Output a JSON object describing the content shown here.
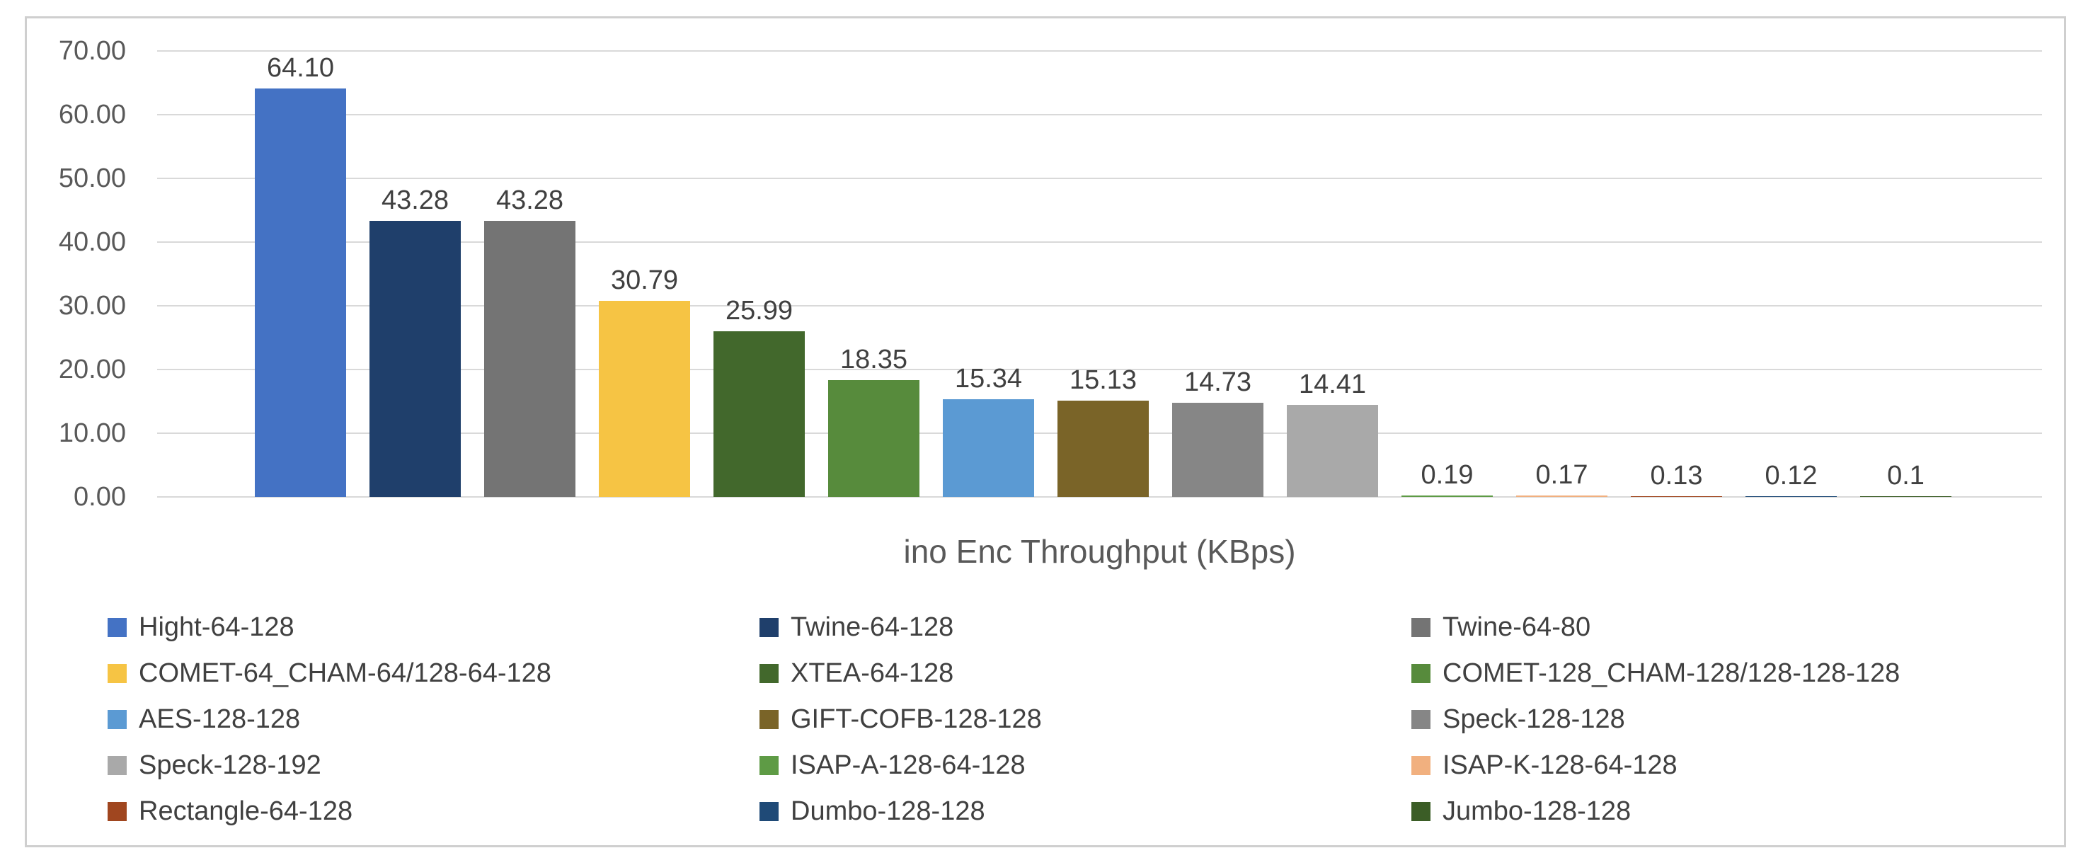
{
  "chart_data": {
    "type": "bar",
    "title": "",
    "xlabel": "ino Enc Throughput (KBps)",
    "ylabel": "",
    "ylim": [
      0,
      70
    ],
    "ytick_step": 10,
    "yticks": [
      "70.00",
      "60.00",
      "50.00",
      "40.00",
      "30.00",
      "20.00",
      "10.00",
      "0.00"
    ],
    "grid": true,
    "legend_position": "bottom",
    "legend_columns": 3,
    "series": [
      {
        "name": "Hight-64-128",
        "value": 64.1,
        "label": "64.10",
        "color": "#4472C4"
      },
      {
        "name": "Twine-64-128",
        "value": 43.28,
        "label": "43.28",
        "color": "#1F3F6B"
      },
      {
        "name": "Twine-64-80",
        "value": 43.28,
        "label": "43.28",
        "color": "#747474"
      },
      {
        "name": "COMET-64_CHAM-64/128-64-128",
        "value": 30.79,
        "label": "30.79",
        "color": "#F6C444"
      },
      {
        "name": "XTEA-64-128",
        "value": 25.99,
        "label": "25.99",
        "color": "#42682C"
      },
      {
        "name": "COMET-128_CHAM-128/128-128-128",
        "value": 18.35,
        "label": "18.35",
        "color": "#578B3C"
      },
      {
        "name": "AES-128-128",
        "value": 15.34,
        "label": "15.34",
        "color": "#5B9AD3"
      },
      {
        "name": "GIFT-COFB-128-128",
        "value": 15.13,
        "label": "15.13",
        "color": "#7A6428"
      },
      {
        "name": "Speck-128-128",
        "value": 14.73,
        "label": "14.73",
        "color": "#868686"
      },
      {
        "name": "Speck-128-192",
        "value": 14.41,
        "label": "14.41",
        "color": "#A9A9A9"
      },
      {
        "name": "ISAP-A-128-64-128",
        "value": 0.19,
        "label": "0.19",
        "color": "#5E9B45"
      },
      {
        "name": "ISAP-K-128-64-128",
        "value": 0.17,
        "label": "0.17",
        "color": "#F1B07F"
      },
      {
        "name": "Rectangle-64-128",
        "value": 0.13,
        "label": "0.13",
        "color": "#A0461F"
      },
      {
        "name": "Dumbo-128-128",
        "value": 0.12,
        "label": "0.12",
        "color": "#1F4A77"
      },
      {
        "name": "Jumbo-128-128",
        "value": 0.1,
        "label": "0.1",
        "color": "#3B5D26"
      }
    ]
  },
  "colors": {
    "frame_border": "#CFCFCF",
    "gridline": "#D9D9D9",
    "axis_text": "#595959",
    "value_text": "#404040",
    "legend_text": "#404040",
    "background": "#FFFFFF"
  }
}
